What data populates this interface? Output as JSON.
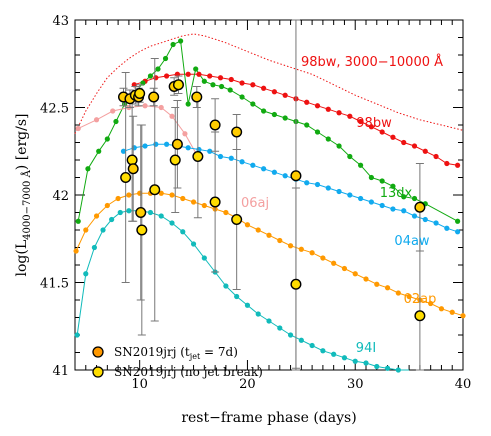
{
  "chart_data": {
    "type": "scatter",
    "xlabel": "rest−frame phase (days)",
    "ylabel_main": "log(L",
    "ylabel_sub": "4000−7000 Å",
    "ylabel_tail": ") [erg/s]",
    "xlim": [
      4,
      40
    ],
    "ylim": [
      41,
      43
    ],
    "xticks": [
      10,
      20,
      30,
      40
    ],
    "yticks": [
      41,
      41.5,
      42,
      42.5,
      43
    ],
    "ytick_labels": [
      "41",
      "41.5",
      "42",
      "42.5",
      "43"
    ],
    "xtick_labels": [
      "10",
      "20",
      "30",
      "40"
    ],
    "colors": {
      "bw98": "#ee1111",
      "bw98_bol": "#ee1111",
      "dx13": "#11aa11",
      "aj06": "#f4a0a0",
      "aw04": "#11aaee",
      "ap02": "#ff9900",
      "i94": "#11bbbb",
      "jrj_fill": "#ffdd00"
    },
    "series": [
      {
        "key": "bw98_bol",
        "name": "98bw, 3000−10000 Å",
        "style": "dotted",
        "color": "#ee1111",
        "x": [
          4,
          5,
          6,
          7,
          8,
          9,
          10,
          11,
          12,
          13,
          14,
          15,
          16,
          17,
          18,
          20,
          22,
          24,
          26,
          28,
          30,
          32,
          34,
          36,
          38,
          40
        ],
        "y": [
          42.35,
          42.48,
          42.58,
          42.67,
          42.73,
          42.78,
          42.82,
          42.85,
          42.87,
          42.89,
          42.91,
          42.92,
          42.91,
          42.89,
          42.87,
          42.82,
          42.77,
          42.73,
          42.69,
          42.63,
          42.57,
          42.52,
          42.47,
          42.43,
          42.4,
          42.37
        ]
      },
      {
        "key": "bw98",
        "name": "98bw",
        "style": "line-points",
        "color": "#ee1111",
        "x": [
          9.5,
          10.5,
          11.5,
          12.5,
          13.5,
          14.5,
          15.5,
          16.5,
          17.5,
          18.5,
          19.5,
          20.5,
          21.5,
          22.5,
          23.5,
          24.5,
          25.5,
          26.5,
          27.5,
          28.5,
          29.5,
          30.5,
          31.5,
          32.5,
          33.5,
          34.5,
          35.5,
          36.5,
          37.5,
          38.5,
          39.5
        ],
        "y": [
          42.63,
          42.65,
          42.67,
          42.68,
          42.69,
          42.69,
          42.69,
          42.68,
          42.67,
          42.66,
          42.64,
          42.63,
          42.61,
          42.59,
          42.57,
          42.55,
          42.53,
          42.51,
          42.49,
          42.47,
          42.45,
          42.42,
          42.39,
          42.36,
          42.33,
          42.3,
          42.28,
          42.25,
          42.22,
          42.18,
          42.17
        ]
      },
      {
        "key": "dx13",
        "name": "13dx",
        "style": "line-points",
        "color": "#11aa11",
        "x": [
          4.3,
          5.2,
          6.2,
          7.0,
          7.8,
          8.6,
          9.4,
          10.3,
          11.0,
          11.7,
          12.4,
          13.1,
          13.8,
          14.5,
          15.2,
          16.0,
          16.8,
          17.6,
          18.4,
          19.5,
          20.5,
          21.5,
          22.5,
          23.5,
          24.5,
          25.5,
          26.5,
          27.5,
          28.5,
          29.5,
          30.5,
          31.5,
          32.5,
          33.5,
          34.5,
          35.5,
          36.5,
          39.5
        ],
        "y": [
          41.85,
          42.15,
          42.25,
          42.32,
          42.42,
          42.52,
          42.57,
          42.64,
          42.68,
          42.72,
          42.78,
          42.86,
          42.88,
          42.52,
          42.72,
          42.65,
          42.63,
          42.62,
          42.6,
          42.56,
          42.52,
          42.48,
          42.46,
          42.44,
          42.42,
          42.4,
          42.36,
          42.32,
          42.28,
          42.22,
          42.17,
          42.1,
          42.08,
          42.05,
          41.99,
          41.98,
          41.95,
          41.85
        ]
      },
      {
        "key": "aj06",
        "name": "06aj",
        "style": "line-points",
        "color": "#f4a0a0",
        "x": [
          4.3,
          6.0,
          7.5,
          9.0,
          10.5,
          12.0,
          13.0,
          14.2,
          15.3
        ],
        "y": [
          42.38,
          42.43,
          42.48,
          42.5,
          42.51,
          42.5,
          42.45,
          42.35,
          42.23
        ]
      },
      {
        "key": "aw04",
        "name": "04aw",
        "style": "line-points",
        "color": "#11aaee",
        "x": [
          8.5,
          9.5,
          10.5,
          11.5,
          12.5,
          13.5,
          14.5,
          15.5,
          16.5,
          17.5,
          18.5,
          19.5,
          20.5,
          21.5,
          22.5,
          23.5,
          24.5,
          25.5,
          26.5,
          27.5,
          28.5,
          29.5,
          30.5,
          31.5,
          32.5,
          33.5,
          34.5,
          35.5,
          36.5,
          37.5,
          38.5,
          39.5
        ],
        "y": [
          42.25,
          42.27,
          42.28,
          42.29,
          42.29,
          42.28,
          42.27,
          42.26,
          42.25,
          42.22,
          42.21,
          42.19,
          42.17,
          42.15,
          42.13,
          42.11,
          42.09,
          42.07,
          42.06,
          42.04,
          42.02,
          42.0,
          41.98,
          41.96,
          41.94,
          41.92,
          41.91,
          41.88,
          41.86,
          41.84,
          41.81,
          41.79
        ]
      },
      {
        "key": "ap02",
        "name": "02ap",
        "style": "line-points",
        "color": "#ff9900",
        "x": [
          4.1,
          5.0,
          6.0,
          7.0,
          8.0,
          9.0,
          10.0,
          11.0,
          12.0,
          13.0,
          14.0,
          15.0,
          16.0,
          17.0,
          18.0,
          19.0,
          20.0,
          21.0,
          22.0,
          23.0,
          24.0,
          25.0,
          26.0,
          27.0,
          28.0,
          29.0,
          30.0,
          31.0,
          32.0,
          33.0,
          34.0,
          35.0,
          36.0,
          37.0,
          38.0,
          39.0,
          40.0
        ],
        "y": [
          41.68,
          41.8,
          41.88,
          41.94,
          41.98,
          42.0,
          42.01,
          42.01,
          42.01,
          42.0,
          41.98,
          41.96,
          41.94,
          41.92,
          41.9,
          41.87,
          41.83,
          41.8,
          41.77,
          41.74,
          41.71,
          41.69,
          41.67,
          41.64,
          41.61,
          41.58,
          41.55,
          41.52,
          41.49,
          41.47,
          41.44,
          41.42,
          41.4,
          41.38,
          41.35,
          41.33,
          41.31
        ]
      },
      {
        "key": "i94",
        "name": "94I",
        "style": "line-points",
        "color": "#11bbbb",
        "x": [
          4.2,
          5.0,
          5.8,
          6.6,
          7.4,
          8.2,
          9.0,
          10.0,
          11.0,
          12.0,
          13.0,
          14.0,
          15.0,
          16.0,
          17.0,
          18.0,
          19.0,
          20.0,
          21.0,
          22.0,
          23.0,
          24.0,
          25.0,
          26.0,
          27.0,
          28.0,
          29.0,
          30.0,
          31.0,
          32.0,
          33.0,
          34.0,
          35.0
        ],
        "y": [
          41.2,
          41.55,
          41.7,
          41.8,
          41.86,
          41.9,
          41.91,
          41.91,
          41.9,
          41.88,
          41.84,
          41.79,
          41.72,
          41.64,
          41.56,
          41.48,
          41.42,
          41.37,
          41.32,
          41.28,
          41.24,
          41.2,
          41.17,
          41.14,
          41.11,
          41.09,
          41.07,
          41.05,
          41.04,
          41.02,
          41.01,
          41.0,
          40.99
        ]
      }
    ],
    "jrj_points": [
      {
        "x": 8.5,
        "y": 42.56,
        "err": 0.05
      },
      {
        "x": 8.7,
        "y": 42.1,
        "err": 0.6
      },
      {
        "x": 9.1,
        "y": 42.55,
        "err": 0.05
      },
      {
        "x": 9.3,
        "y": 42.2,
        "err": 0.35
      },
      {
        "x": 9.4,
        "y": 42.15,
        "err": 0.3
      },
      {
        "x": 9.6,
        "y": 42.57,
        "err": 0.05
      },
      {
        "x": 9.9,
        "y": 42.56,
        "err": 0.05
      },
      {
        "x": 10.0,
        "y": 42.58,
        "err": 0.05
      },
      {
        "x": 10.1,
        "y": 41.9,
        "err": 0.5
      },
      {
        "x": 10.2,
        "y": 41.8,
        "err": 0.6
      },
      {
        "x": 11.3,
        "y": 42.56,
        "err": 0.05
      },
      {
        "x": 11.4,
        "y": 42.03,
        "err": 0.75
      },
      {
        "x": 13.2,
        "y": 42.62,
        "err": 0.05
      },
      {
        "x": 13.3,
        "y": 42.2,
        "err": 0.3
      },
      {
        "x": 13.5,
        "y": 42.29,
        "err": 0.25
      },
      {
        "x": 13.6,
        "y": 42.63,
        "err": 0.05
      },
      {
        "x": 15.3,
        "y": 42.56,
        "err": 0.06
      },
      {
        "x": 15.4,
        "y": 42.22,
        "err": 0.35
      },
      {
        "x": 17.0,
        "y": 42.4,
        "err": 0.15
      },
      {
        "x": 17.0,
        "y": 41.96,
        "err": 0.4
      },
      {
        "x": 19.0,
        "y": 42.36,
        "err": 0.1
      },
      {
        "x": 19.0,
        "y": 41.86,
        "err": 0.4
      },
      {
        "x": 24.5,
        "y": 42.11,
        "err": 1.1
      },
      {
        "x": 24.5,
        "y": 41.49,
        "err": 0.55
      },
      {
        "x": 36.0,
        "y": 41.93,
        "err": 0.25
      },
      {
        "x": 36.0,
        "y": 41.31,
        "err": 0.6
      }
    ],
    "legend": {
      "placement": "bottom-left",
      "entry1": "SN2019jrj (t",
      "entry1_sub": "jet",
      "entry1_tail": " = 7d)",
      "entry2": "SN2019jrj (no jet break)"
    },
    "labels": {
      "bw98_bol": "98bw, 3000−10000 Å",
      "bw98": "98bw",
      "dx13": "13dx",
      "aj06": "06aj",
      "aw04": "04aw",
      "ap02": "02ap",
      "i94": "94I"
    }
  }
}
